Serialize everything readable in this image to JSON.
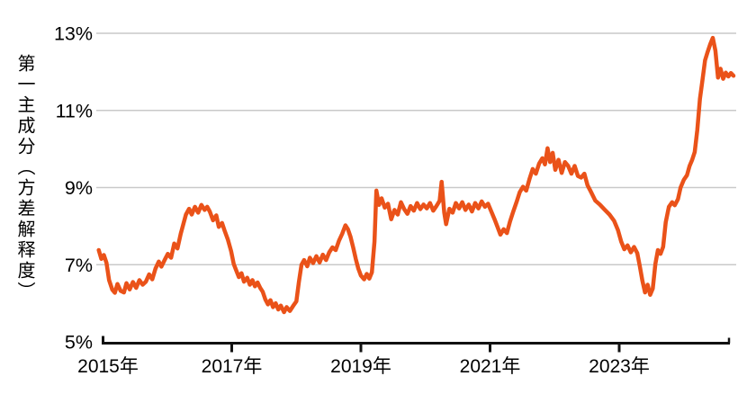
{
  "chart_data": {
    "type": "line",
    "title": "",
    "ylabel": "第一主成分（方差解释度）",
    "grid": "horizontal-only",
    "grid_color": "#c9c9c9",
    "axis_color": "#111111",
    "y_axis": {
      "range": [
        5,
        13
      ],
      "unit": "%",
      "ticks": [
        {
          "label": "13%",
          "value": 13
        },
        {
          "label": "11%",
          "value": 11
        },
        {
          "label": "9%",
          "value": 9
        },
        {
          "label": "7%",
          "value": 7
        },
        {
          "label": "5%",
          "value": 5
        }
      ]
    },
    "x_axis": {
      "range": [
        2014.9,
        2024.8
      ],
      "ticks": [
        {
          "label": "2015年",
          "value": 2015
        },
        {
          "label": "2017年",
          "value": 2017
        },
        {
          "label": "2019年",
          "value": 2019
        },
        {
          "label": "2021年",
          "value": 2021
        },
        {
          "label": "2023年",
          "value": 2023
        }
      ]
    },
    "series": [
      {
        "name": "第一主成分（方差解释度）",
        "color": "#EA5219",
        "points": [
          [
            2014.94,
            7.38
          ],
          [
            2014.98,
            7.15
          ],
          [
            2015.02,
            7.25
          ],
          [
            2015.06,
            7.05
          ],
          [
            2015.1,
            6.6
          ],
          [
            2015.15,
            6.35
          ],
          [
            2015.19,
            6.27
          ],
          [
            2015.23,
            6.5
          ],
          [
            2015.28,
            6.32
          ],
          [
            2015.33,
            6.28
          ],
          [
            2015.37,
            6.52
          ],
          [
            2015.42,
            6.36
          ],
          [
            2015.47,
            6.55
          ],
          [
            2015.52,
            6.4
          ],
          [
            2015.57,
            6.6
          ],
          [
            2015.62,
            6.48
          ],
          [
            2015.67,
            6.56
          ],
          [
            2015.72,
            6.75
          ],
          [
            2015.77,
            6.62
          ],
          [
            2015.82,
            6.9
          ],
          [
            2015.87,
            7.08
          ],
          [
            2015.91,
            6.95
          ],
          [
            2015.96,
            7.12
          ],
          [
            2016.01,
            7.28
          ],
          [
            2016.06,
            7.18
          ],
          [
            2016.11,
            7.55
          ],
          [
            2016.16,
            7.42
          ],
          [
            2016.21,
            7.8
          ],
          [
            2016.25,
            8.05
          ],
          [
            2016.29,
            8.3
          ],
          [
            2016.34,
            8.45
          ],
          [
            2016.38,
            8.3
          ],
          [
            2016.43,
            8.5
          ],
          [
            2016.48,
            8.35
          ],
          [
            2016.53,
            8.55
          ],
          [
            2016.58,
            8.42
          ],
          [
            2016.62,
            8.5
          ],
          [
            2016.66,
            8.38
          ],
          [
            2016.71,
            8.15
          ],
          [
            2016.76,
            8.28
          ],
          [
            2016.8,
            7.98
          ],
          [
            2016.85,
            8.08
          ],
          [
            2016.89,
            7.88
          ],
          [
            2016.94,
            7.65
          ],
          [
            2016.99,
            7.35
          ],
          [
            2017.03,
            7.02
          ],
          [
            2017.07,
            6.85
          ],
          [
            2017.11,
            6.68
          ],
          [
            2017.15,
            6.78
          ],
          [
            2017.19,
            6.56
          ],
          [
            2017.24,
            6.66
          ],
          [
            2017.28,
            6.48
          ],
          [
            2017.32,
            6.6
          ],
          [
            2017.36,
            6.44
          ],
          [
            2017.4,
            6.54
          ],
          [
            2017.44,
            6.4
          ],
          [
            2017.48,
            6.3
          ],
          [
            2017.52,
            6.1
          ],
          [
            2017.56,
            5.97
          ],
          [
            2017.6,
            6.08
          ],
          [
            2017.64,
            5.9
          ],
          [
            2017.68,
            6.0
          ],
          [
            2017.72,
            5.84
          ],
          [
            2017.76,
            5.94
          ],
          [
            2017.81,
            5.77
          ],
          [
            2017.85,
            5.9
          ],
          [
            2017.9,
            5.8
          ],
          [
            2017.95,
            5.93
          ],
          [
            2018.0,
            6.05
          ],
          [
            2018.04,
            6.55
          ],
          [
            2018.08,
            7.0
          ],
          [
            2018.12,
            7.12
          ],
          [
            2018.17,
            6.96
          ],
          [
            2018.21,
            7.18
          ],
          [
            2018.26,
            7.04
          ],
          [
            2018.31,
            7.22
          ],
          [
            2018.36,
            7.06
          ],
          [
            2018.41,
            7.26
          ],
          [
            2018.46,
            7.12
          ],
          [
            2018.51,
            7.32
          ],
          [
            2018.56,
            7.45
          ],
          [
            2018.61,
            7.38
          ],
          [
            2018.66,
            7.62
          ],
          [
            2018.71,
            7.8
          ],
          [
            2018.76,
            8.02
          ],
          [
            2018.8,
            7.92
          ],
          [
            2018.84,
            7.72
          ],
          [
            2018.88,
            7.45
          ],
          [
            2018.92,
            7.15
          ],
          [
            2018.96,
            6.9
          ],
          [
            2019.0,
            6.72
          ],
          [
            2019.05,
            6.62
          ],
          [
            2019.09,
            6.76
          ],
          [
            2019.13,
            6.64
          ],
          [
            2019.17,
            6.8
          ],
          [
            2019.21,
            7.6
          ],
          [
            2019.24,
            8.92
          ],
          [
            2019.28,
            8.55
          ],
          [
            2019.32,
            8.72
          ],
          [
            2019.37,
            8.48
          ],
          [
            2019.42,
            8.58
          ],
          [
            2019.47,
            8.18
          ],
          [
            2019.52,
            8.42
          ],
          [
            2019.57,
            8.3
          ],
          [
            2019.62,
            8.62
          ],
          [
            2019.67,
            8.44
          ],
          [
            2019.72,
            8.32
          ],
          [
            2019.77,
            8.52
          ],
          [
            2019.82,
            8.4
          ],
          [
            2019.87,
            8.6
          ],
          [
            2019.92,
            8.44
          ],
          [
            2019.97,
            8.56
          ],
          [
            2020.02,
            8.46
          ],
          [
            2020.07,
            8.6
          ],
          [
            2020.12,
            8.4
          ],
          [
            2020.17,
            8.52
          ],
          [
            2020.22,
            8.66
          ],
          [
            2020.25,
            9.15
          ],
          [
            2020.29,
            8.35
          ],
          [
            2020.32,
            8.05
          ],
          [
            2020.37,
            8.45
          ],
          [
            2020.42,
            8.35
          ],
          [
            2020.47,
            8.6
          ],
          [
            2020.52,
            8.46
          ],
          [
            2020.57,
            8.62
          ],
          [
            2020.62,
            8.42
          ],
          [
            2020.67,
            8.56
          ],
          [
            2020.72,
            8.38
          ],
          [
            2020.77,
            8.6
          ],
          [
            2020.82,
            8.46
          ],
          [
            2020.87,
            8.64
          ],
          [
            2020.92,
            8.5
          ],
          [
            2020.97,
            8.58
          ],
          [
            2021.02,
            8.38
          ],
          [
            2021.07,
            8.18
          ],
          [
            2021.12,
            7.96
          ],
          [
            2021.16,
            7.78
          ],
          [
            2021.21,
            7.92
          ],
          [
            2021.26,
            7.82
          ],
          [
            2021.31,
            8.12
          ],
          [
            2021.36,
            8.38
          ],
          [
            2021.41,
            8.62
          ],
          [
            2021.46,
            8.88
          ],
          [
            2021.51,
            9.02
          ],
          [
            2021.56,
            8.92
          ],
          [
            2021.61,
            9.22
          ],
          [
            2021.66,
            9.48
          ],
          [
            2021.71,
            9.36
          ],
          [
            2021.76,
            9.62
          ],
          [
            2021.81,
            9.76
          ],
          [
            2021.85,
            9.6
          ],
          [
            2021.89,
            10.02
          ],
          [
            2021.93,
            9.66
          ],
          [
            2021.97,
            9.9
          ],
          [
            2022.01,
            9.46
          ],
          [
            2022.06,
            9.72
          ],
          [
            2022.11,
            9.38
          ],
          [
            2022.16,
            9.66
          ],
          [
            2022.21,
            9.56
          ],
          [
            2022.26,
            9.36
          ],
          [
            2022.31,
            9.56
          ],
          [
            2022.36,
            9.3
          ],
          [
            2022.41,
            9.26
          ],
          [
            2022.46,
            9.36
          ],
          [
            2022.51,
            9.06
          ],
          [
            2022.56,
            8.9
          ],
          [
            2022.63,
            8.66
          ],
          [
            2022.7,
            8.56
          ],
          [
            2022.78,
            8.42
          ],
          [
            2022.85,
            8.3
          ],
          [
            2022.92,
            8.14
          ],
          [
            2022.98,
            7.9
          ],
          [
            2023.03,
            7.6
          ],
          [
            2023.08,
            7.4
          ],
          [
            2023.13,
            7.5
          ],
          [
            2023.18,
            7.32
          ],
          [
            2023.23,
            7.46
          ],
          [
            2023.28,
            7.3
          ],
          [
            2023.32,
            6.95
          ],
          [
            2023.36,
            6.58
          ],
          [
            2023.4,
            6.28
          ],
          [
            2023.44,
            6.48
          ],
          [
            2023.48,
            6.22
          ],
          [
            2023.52,
            6.38
          ],
          [
            2023.56,
            7.02
          ],
          [
            2023.6,
            7.38
          ],
          [
            2023.64,
            7.28
          ],
          [
            2023.68,
            7.46
          ],
          [
            2023.72,
            8.1
          ],
          [
            2023.77,
            8.5
          ],
          [
            2023.82,
            8.62
          ],
          [
            2023.86,
            8.54
          ],
          [
            2023.91,
            8.7
          ],
          [
            2023.95,
            9.0
          ],
          [
            2024.0,
            9.2
          ],
          [
            2024.05,
            9.32
          ],
          [
            2024.09,
            9.56
          ],
          [
            2024.13,
            9.72
          ],
          [
            2024.17,
            9.92
          ],
          [
            2024.21,
            10.5
          ],
          [
            2024.25,
            11.3
          ],
          [
            2024.29,
            11.8
          ],
          [
            2024.33,
            12.3
          ],
          [
            2024.37,
            12.52
          ],
          [
            2024.41,
            12.72
          ],
          [
            2024.45,
            12.88
          ],
          [
            2024.49,
            12.55
          ],
          [
            2024.53,
            11.85
          ],
          [
            2024.57,
            12.08
          ],
          [
            2024.61,
            11.82
          ],
          [
            2024.65,
            11.98
          ],
          [
            2024.69,
            11.88
          ],
          [
            2024.73,
            11.97
          ],
          [
            2024.77,
            11.9
          ]
        ]
      }
    ]
  }
}
